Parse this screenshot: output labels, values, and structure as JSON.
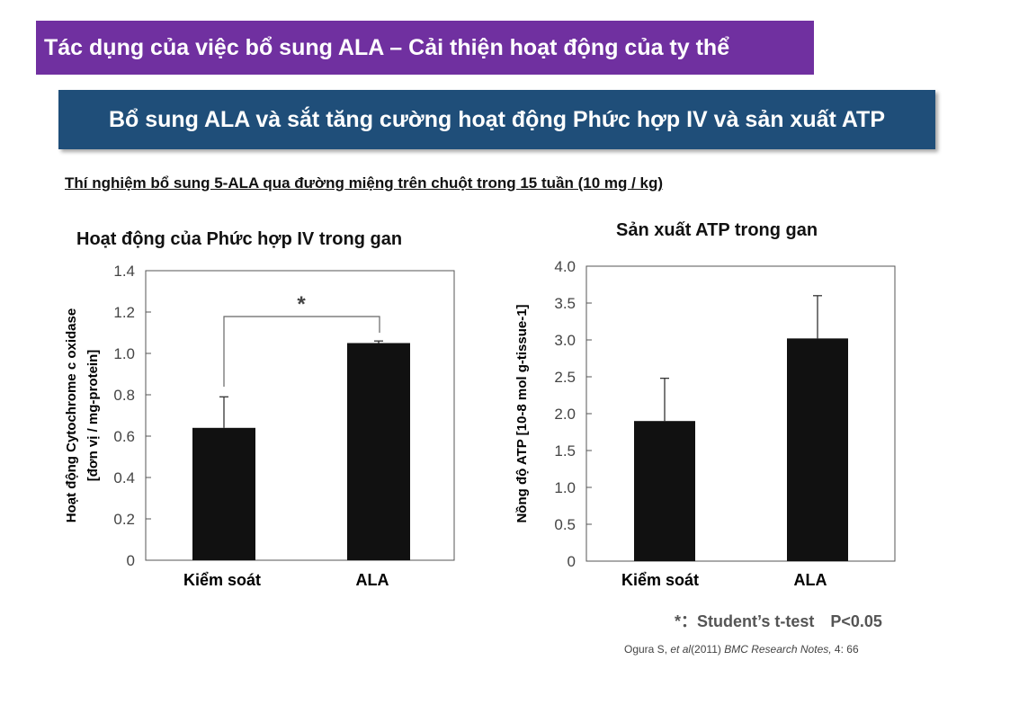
{
  "header": {
    "title": "Tác dụng của việc bổ sung ALA – Cải thiện hoạt động của ty thể",
    "subtitle": "Bổ sung ALA và sắt tăng cường hoạt động Phức hợp IV và sản xuất ATP",
    "experiment": "Thí nghiệm bổ sung 5-ALA qua đường miệng trên chuột trong 15 tuần (10 mg / kg)"
  },
  "colors": {
    "title_bg": "#7030a0",
    "subtitle_bg": "#1f4e79",
    "bar": "#111111"
  },
  "chart_data": [
    {
      "type": "bar",
      "title": "Hoạt động của Phức hợp IV trong gan",
      "ylabel_line1": "Hoạt động Cytochrome c oxidase",
      "ylabel_line2": "[đơn vị / mg-protein]",
      "xlabel": "",
      "categories": [
        "Kiểm soát",
        "ALA"
      ],
      "values": [
        0.64,
        1.05
      ],
      "errors": [
        0.15,
        0.01
      ],
      "ylim": [
        0,
        1.4
      ],
      "yticks": [
        "0",
        "0.2",
        "0.4",
        "0.6",
        "0.8",
        "1.0",
        "1.2",
        "1.4"
      ],
      "significance": "*",
      "grid": false
    },
    {
      "type": "bar",
      "title": "Sản xuất ATP trong gan",
      "ylabel": "Nồng độ ATP [10-8 mol g-tissue-1]",
      "xlabel": "",
      "categories": [
        "Kiểm soát",
        "ALA"
      ],
      "values": [
        1.9,
        3.02
      ],
      "errors": [
        0.58,
        0.58
      ],
      "ylim": [
        0,
        4.0
      ],
      "yticks": [
        "0",
        "0.5",
        "1.0",
        "1.5",
        "2.0",
        "2.5",
        "3.0",
        "3.5",
        "4.0"
      ],
      "grid": false
    }
  ],
  "footnote": "*：Student’s t-test　P<0.05",
  "citation": {
    "authors": "Ogura S,",
    "etal": "et al",
    "year": "(2011)",
    "journal": "BMC Research Notes,",
    "issue": "4: 66"
  }
}
